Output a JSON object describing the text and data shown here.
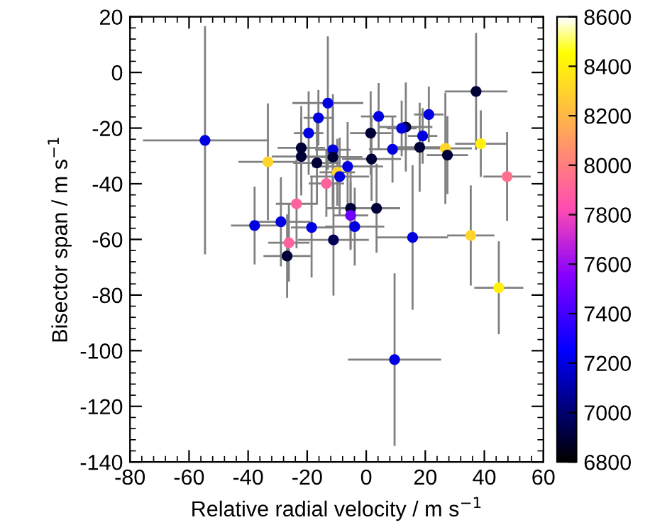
{
  "chart_data": {
    "type": "scatter",
    "xlabel": "Relative radial velocity / m s$^{−1}$",
    "ylabel": "Bisector span / m s$^{−1}$",
    "x": [
      -54.6,
      -33.3,
      -13.0,
      -16.2,
      -19.5,
      -22.0,
      -22.0,
      -11.3,
      -16.7,
      -11.3,
      -6.3,
      -9.8,
      -9.0,
      -13.5,
      -23.6,
      -5.3,
      -5.3,
      -37.8,
      -28.9,
      -18.5,
      -11.1,
      -26.2,
      -26.8,
      37.2,
      4.2,
      21.2,
      13.4,
      12.0,
      1.5,
      19.1,
      8.9,
      18.1,
      26.8,
      27.5,
      38.8,
      1.8,
      47.7,
      3.5,
      -3.9,
      15.7,
      35.4,
      44.9,
      9.6
    ],
    "values": [
      -24.4,
      -32.1,
      -11.0,
      -16.3,
      -21.8,
      -27.1,
      -30.2,
      -27.8,
      -32.5,
      -30.4,
      -33.8,
      -35.9,
      -37.4,
      -39.9,
      -47.2,
      -48.8,
      -51.4,
      -55.0,
      -53.7,
      -55.7,
      -60.2,
      -61.2,
      -66.0,
      -6.8,
      -15.8,
      -15.1,
      -19.6,
      -20.1,
      -21.8,
      -22.8,
      -27.6,
      -26.9,
      -27.3,
      -29.7,
      -25.6,
      -31.1,
      -37.4,
      -48.8,
      -55.4,
      -59.3,
      -58.6,
      -77.4,
      -103.2
    ],
    "cvalues": [
      7200,
      8300,
      7200,
      7200,
      7200,
      6900,
      6900,
      7200,
      6900,
      6900,
      7200,
      8300,
      7200,
      7900,
      7900,
      6900,
      7500,
      7200,
      7200,
      7200,
      6950,
      7900,
      6900,
      6900,
      7200,
      7200,
      6900,
      7200,
      6900,
      7200,
      7200,
      6900,
      8300,
      6900,
      8400,
      6900,
      7950,
      6900,
      7200,
      7200,
      8300,
      8400,
      7200
    ],
    "xerrors": [
      21,
      10,
      12,
      5,
      5,
      8,
      10,
      6,
      8,
      10,
      12,
      6,
      10,
      6,
      7,
      8,
      6,
      8,
      10,
      7,
      12,
      7,
      8,
      10.6,
      6,
      5,
      9,
      5,
      7,
      5,
      8,
      10,
      9,
      7,
      8.7,
      10,
      8,
      8,
      10,
      12,
      8,
      8.3,
      15.8
    ],
    "errors": [
      41,
      21,
      24,
      10,
      15,
      15,
      14,
      20,
      15,
      18,
      16,
      12,
      14,
      12,
      16,
      15,
      12,
      14,
      16,
      18,
      20,
      14,
      15,
      21,
      12,
      10,
      16,
      10,
      15,
      10,
      12,
      16,
      20,
      14,
      12,
      15,
      16,
      16,
      14,
      26,
      18,
      16.7,
      31
    ],
    "marker": "circle",
    "xlim": [
      -80,
      60
    ],
    "xticks": [
      -80,
      -60,
      -40,
      -20,
      0,
      20,
      40,
      60
    ],
    "ylim": [
      -140,
      20
    ],
    "yticks": [
      -140,
      -120,
      -100,
      -80,
      -60,
      -40,
      -20,
      0,
      20
    ],
    "clim": [
      6800,
      8600
    ],
    "cticks": [
      6800,
      7000,
      7200,
      7400,
      7600,
      7800,
      8000,
      8200,
      8400,
      8600
    ],
    "grid": false,
    "legend": false
  }
}
